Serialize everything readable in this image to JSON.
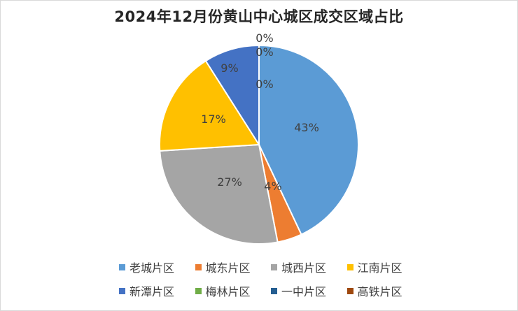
{
  "chart_data": {
    "type": "pie",
    "title": "2024年12月份黄山中心城区成交区域占比",
    "categories": [
      "老城片区",
      "城东片区",
      "城西片区",
      "江南片区",
      "新潭片区",
      "梅林片区",
      "一中片区",
      "高铁片区"
    ],
    "values": [
      43,
      4,
      27,
      17,
      9,
      0,
      0,
      0
    ],
    "data_labels": [
      "43%",
      "4%",
      "27%",
      "17%",
      "9%",
      "0%",
      "0%",
      "0%"
    ],
    "colors": [
      "#5B9BD5",
      "#ED7D31",
      "#A5A5A5",
      "#FFC000",
      "#4472C4",
      "#70AD47",
      "#255E91",
      "#9E480E"
    ],
    "legend_position": "bottom"
  }
}
